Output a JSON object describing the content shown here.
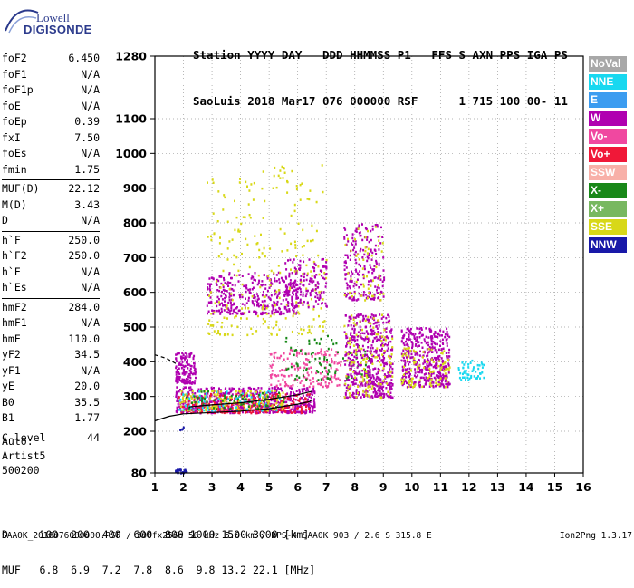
{
  "logo": {
    "line1": "Lowell",
    "line2": "DIGISONDE"
  },
  "header": {
    "line1": "Station YYYY DAY   DDD HHMMSS P1   FFS S AXN PPS IGA PS",
    "line2": "SaoLuis 2018 Mar17 076 000000 RSF      1 715 100 00- 11"
  },
  "params": {
    "group1": [
      {
        "k": "foF2",
        "v": "6.450"
      },
      {
        "k": "foF1",
        "v": "N/A"
      },
      {
        "k": "foF1p",
        "v": "N/A"
      },
      {
        "k": "foE",
        "v": "N/A"
      },
      {
        "k": "foEp",
        "v": "0.39"
      },
      {
        "k": "fxI",
        "v": "7.50"
      },
      {
        "k": "foEs",
        "v": "N/A"
      },
      {
        "k": "fmin",
        "v": "1.75"
      }
    ],
    "group2": [
      {
        "k": "MUF(D)",
        "v": "22.12"
      },
      {
        "k": "M(D)",
        "v": "3.43"
      },
      {
        "k": "D",
        "v": "N/A"
      }
    ],
    "group3": [
      {
        "k": "h`F",
        "v": "250.0"
      },
      {
        "k": "h`F2",
        "v": "250.0"
      },
      {
        "k": "h`E",
        "v": "N/A"
      },
      {
        "k": "h`Es",
        "v": "N/A"
      }
    ],
    "group4": [
      {
        "k": "hmF2",
        "v": "284.0"
      },
      {
        "k": "hmF1",
        "v": "N/A"
      },
      {
        "k": "hmE",
        "v": "110.0"
      },
      {
        "k": "yF2",
        "v": "34.5"
      },
      {
        "k": "yF1",
        "v": "N/A"
      },
      {
        "k": "yE",
        "v": "20.0"
      },
      {
        "k": "B0",
        "v": "35.5"
      },
      {
        "k": "B1",
        "v": "1.77"
      }
    ],
    "group5": [
      {
        "k": "C-level",
        "v": "44"
      }
    ]
  },
  "auto": {
    "line1": "Auto:",
    "line2": "Artist5",
    "line3": "500200"
  },
  "legend": [
    {
      "label": "NoVal",
      "color": "#a8a8a8"
    },
    {
      "label": "NNE",
      "color": "#18d8f0"
    },
    {
      "label": "E",
      "color": "#3c9cf0"
    },
    {
      "label": "W",
      "color": "#b000b0"
    },
    {
      "label": "Vo-",
      "color": "#f048a0"
    },
    {
      "label": "Vo+",
      "color": "#f01838"
    },
    {
      "label": "SSW",
      "color": "#f8b0a8"
    },
    {
      "label": "X-",
      "color": "#188818"
    },
    {
      "label": "X+",
      "color": "#78b860"
    },
    {
      "label": "SSE",
      "color": "#d8d818"
    },
    {
      "label": "NNW",
      "color": "#1818a8"
    }
  ],
  "dtable": {
    "d_line": "D     100  200  400  600  800 1000 1500 3000 [km]",
    "muf_line": "MUF   6.8  6.9  7.2  7.8  8.6  9.8 13.2 22.1 [MHz]"
  },
  "footer": {
    "left": "SAA0K_2018076000000.RSF / 300fx256h 50 kHz 5.0 km / DPS-4 SAA0K 903 / 2.6 S 315.8 E",
    "right": "Ion2Png 1.3.17"
  },
  "chart_data": {
    "type": "scatter",
    "title": "",
    "xlabel": "",
    "ylabel": "",
    "xlim": [
      1,
      16
    ],
    "ylim": [
      80,
      1280
    ],
    "xticks": [
      1,
      2,
      3,
      4,
      5,
      6,
      7,
      8,
      9,
      10,
      11,
      12,
      13,
      14,
      15,
      16
    ],
    "yticks": [
      80,
      200,
      300,
      400,
      500,
      600,
      700,
      800,
      900,
      1000,
      1100,
      1280
    ],
    "grid": true,
    "clusters": [
      {
        "name": "W",
        "color": "#b000b0",
        "xrange": [
          1.7,
          6.6
        ],
        "yrange": [
          255,
          330
        ],
        "n": 620
      },
      {
        "name": "Vo+",
        "color": "#f01838",
        "xrange": [
          1.8,
          6.4
        ],
        "yrange": [
          255,
          310
        ],
        "n": 240
      },
      {
        "name": "SSE",
        "color": "#d8d818",
        "xrange": [
          1.8,
          5.5
        ],
        "yrange": [
          262,
          320
        ],
        "n": 160
      },
      {
        "name": "NNE",
        "color": "#18d8f0",
        "xrange": [
          1.8,
          5.5
        ],
        "yrange": [
          262,
          320
        ],
        "n": 70
      },
      {
        "name": "X-",
        "color": "#188818",
        "xrange": [
          1.9,
          5.5
        ],
        "yrange": [
          265,
          320
        ],
        "n": 60
      },
      {
        "name": "Vo-",
        "color": "#f048a0",
        "xrange": [
          5.0,
          7.5
        ],
        "yrange": [
          330,
          440
        ],
        "n": 160
      },
      {
        "name": "X-",
        "color": "#188818",
        "xrange": [
          5.5,
          8.5
        ],
        "yrange": [
          350,
          480
        ],
        "n": 90
      },
      {
        "name": "W",
        "color": "#b000b0",
        "xrange": [
          1.7,
          2.4
        ],
        "yrange": [
          340,
          430
        ],
        "n": 140
      },
      {
        "name": "W",
        "color": "#b000b0",
        "xrange": [
          7.6,
          9.3
        ],
        "yrange": [
          300,
          540
        ],
        "n": 520
      },
      {
        "name": "SSE",
        "color": "#d8d818",
        "xrange": [
          7.6,
          9.3
        ],
        "yrange": [
          300,
          540
        ],
        "n": 120
      },
      {
        "name": "W",
        "color": "#b000b0",
        "xrange": [
          9.6,
          11.3
        ],
        "yrange": [
          330,
          500
        ],
        "n": 420
      },
      {
        "name": "SSE",
        "color": "#d8d818",
        "xrange": [
          9.6,
          11.3
        ],
        "yrange": [
          330,
          450
        ],
        "n": 90
      },
      {
        "name": "NNE",
        "color": "#18d8f0",
        "xrange": [
          11.6,
          12.5
        ],
        "yrange": [
          350,
          410
        ],
        "n": 50
      },
      {
        "name": "W",
        "color": "#b000b0",
        "xrange": [
          2.8,
          6.0
        ],
        "yrange": [
          540,
          660
        ],
        "n": 340
      },
      {
        "name": "SSE",
        "color": "#d8d818",
        "xrange": [
          2.8,
          7.0
        ],
        "yrange": [
          480,
          980
        ],
        "n": 260
      },
      {
        "name": "W",
        "color": "#b000b0",
        "xrange": [
          5.5,
          7.0
        ],
        "yrange": [
          560,
          700
        ],
        "n": 150
      },
      {
        "name": "W",
        "color": "#b000b0",
        "xrange": [
          7.6,
          9.0
        ],
        "yrange": [
          580,
          800
        ],
        "n": 200
      },
      {
        "name": "SSE",
        "color": "#d8d818",
        "xrange": [
          7.6,
          9.0
        ],
        "yrange": [
          580,
          800
        ],
        "n": 50
      },
      {
        "name": "NNW",
        "color": "#1818a8",
        "xrange": [
          1.7,
          2.1
        ],
        "yrange": [
          82,
          94
        ],
        "n": 30
      },
      {
        "name": "NNW",
        "color": "#1818a8",
        "xrange": [
          1.8,
          2.0
        ],
        "yrange": [
          205,
          215
        ],
        "n": 4
      }
    ],
    "trace_curve": {
      "x": [
        1.0,
        1.5,
        2.0,
        3.0,
        4.0,
        5.0,
        6.0,
        6.4,
        6.5
      ],
      "y": [
        230,
        243,
        250,
        254,
        258,
        265,
        278,
        285,
        290
      ]
    },
    "trace_curve_2": {
      "x": [
        2.2,
        3.0,
        4.0,
        5.0,
        6.0,
        6.5
      ],
      "y": [
        270,
        276,
        282,
        292,
        305,
        315
      ]
    },
    "dashed_curve": {
      "x": [
        1.0,
        1.4,
        1.8
      ],
      "y": [
        420,
        410,
        392
      ]
    }
  }
}
